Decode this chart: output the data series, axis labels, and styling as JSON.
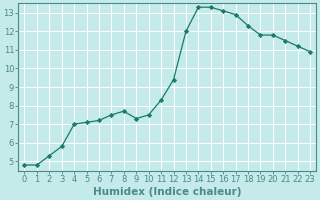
{
  "x": [
    0,
    1,
    2,
    3,
    4,
    5,
    6,
    7,
    8,
    9,
    10,
    11,
    12,
    13,
    14,
    15,
    16,
    17,
    18,
    19,
    20,
    21,
    22,
    23
  ],
  "y": [
    4.8,
    4.8,
    5.3,
    5.8,
    7.0,
    7.1,
    7.2,
    7.5,
    7.7,
    7.3,
    7.5,
    8.3,
    9.4,
    12.0,
    13.3,
    13.3,
    13.1,
    12.9,
    12.3,
    11.8,
    11.8,
    11.5,
    11.2,
    10.9
  ],
  "line_color": "#1a7a6a",
  "marker": "D",
  "marker_size": 2.2,
  "bg_color": "#c5eaea",
  "grid_color": "#ffffff",
  "xlabel": "Humidex (Indice chaleur)",
  "xlim": [
    -0.5,
    23.5
  ],
  "ylim": [
    4.5,
    13.5
  ],
  "yticks": [
    5,
    6,
    7,
    8,
    9,
    10,
    11,
    12,
    13
  ],
  "xtick_labels": [
    "0",
    "1",
    "2",
    "3",
    "4",
    "5",
    "6",
    "7",
    "8",
    "9",
    "10",
    "11",
    "12",
    "13",
    "14",
    "15",
    "16",
    "17",
    "18",
    "19",
    "20",
    "21",
    "22",
    "23"
  ],
  "tick_label_size": 6.0,
  "xlabel_size": 7.5,
  "axis_color": "#4a8a8a",
  "spine_color": "#4a8a8a"
}
